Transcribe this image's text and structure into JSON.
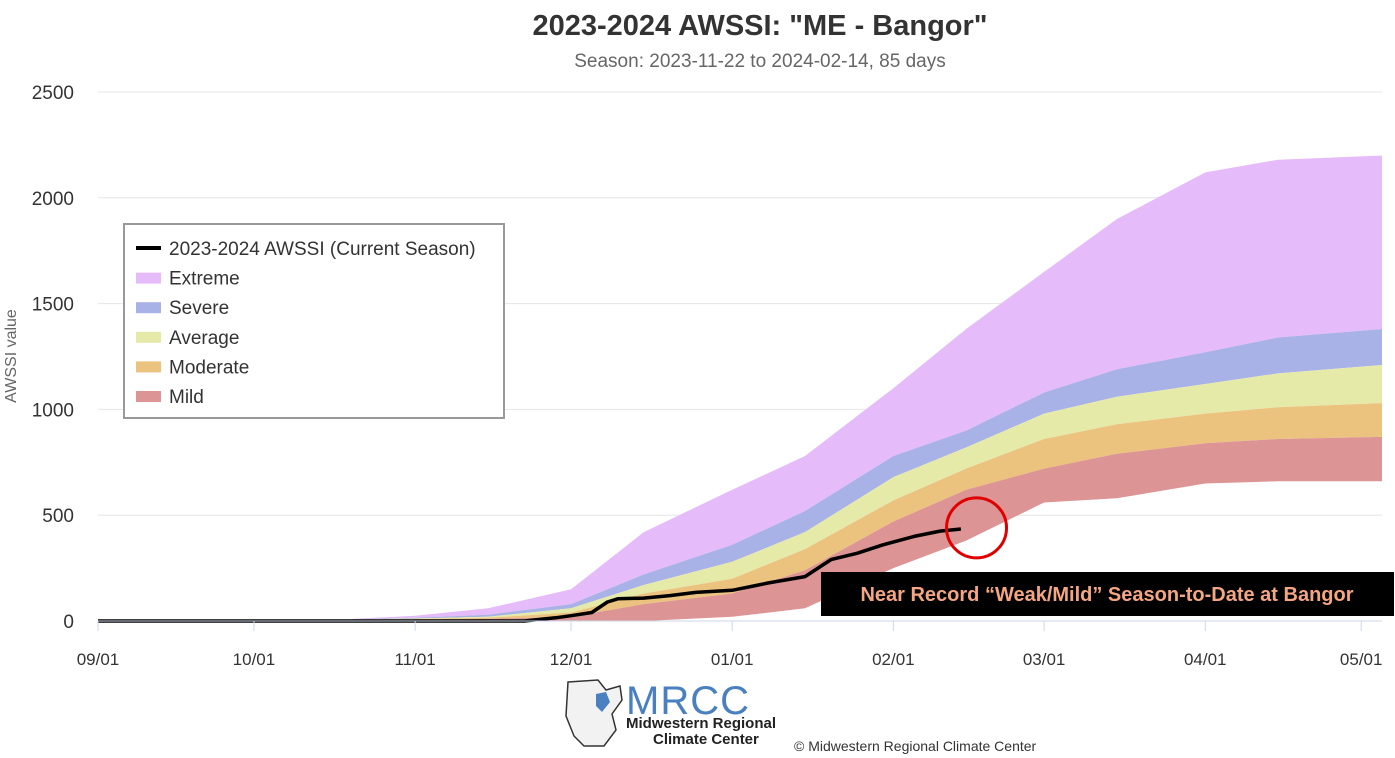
{
  "chart_data": {
    "type": "area",
    "title": "2023-2024 AWSSI: \"ME - Bangor\"",
    "subtitle": "Season: 2023-11-22 to 2024-02-14, 85 days",
    "ylabel": "AWSSI value",
    "xlabel": "",
    "ylim": [
      0,
      2500
    ],
    "yticks": [
      0,
      500,
      1000,
      1500,
      2000,
      2500
    ],
    "xlim": [
      "2023-09-01",
      "2024-05-05"
    ],
    "xticks": [
      {
        "date": "2023-09-01",
        "label": "09/01"
      },
      {
        "date": "2023-10-01",
        "label": "10/01"
      },
      {
        "date": "2023-11-01",
        "label": "11/01"
      },
      {
        "date": "2023-12-01",
        "label": "12/01"
      },
      {
        "date": "2024-01-01",
        "label": "01/01"
      },
      {
        "date": "2024-02-01",
        "label": "02/01"
      },
      {
        "date": "2024-03-01",
        "label": "03/01"
      },
      {
        "date": "2024-04-01",
        "label": "04/01"
      },
      {
        "date": "2024-05-01",
        "label": "05/01"
      }
    ],
    "grid": true,
    "legend_position": "top-left",
    "bands": {
      "dates": [
        "2023-10-20",
        "2023-11-01",
        "2023-11-15",
        "2023-12-01",
        "2023-12-15",
        "2024-01-01",
        "2024-01-15",
        "2024-02-01",
        "2024-02-15",
        "2024-03-01",
        "2024-03-15",
        "2024-04-01",
        "2024-04-15",
        "2024-05-05"
      ],
      "mild_low": [
        0,
        0,
        0,
        0,
        0,
        20,
        60,
        250,
        380,
        560,
        580,
        650,
        660,
        660
      ],
      "mild_high": [
        3,
        6,
        10,
        20,
        80,
        130,
        240,
        470,
        620,
        720,
        790,
        840,
        860,
        870
      ],
      "moderate_high": [
        5,
        8,
        15,
        40,
        130,
        200,
        340,
        570,
        720,
        860,
        930,
        980,
        1010,
        1030
      ],
      "average_high": [
        7,
        12,
        20,
        60,
        170,
        280,
        420,
        680,
        820,
        980,
        1060,
        1120,
        1170,
        1210
      ],
      "severe_high": [
        8,
        15,
        30,
        80,
        220,
        360,
        520,
        780,
        900,
        1080,
        1190,
        1270,
        1340,
        1380
      ],
      "extreme_high": [
        10,
        25,
        60,
        150,
        420,
        620,
        780,
        1100,
        1380,
        1650,
        1900,
        2120,
        2180,
        2200
      ]
    },
    "series": [
      {
        "name": "2023-2024 AWSSI (Current Season)",
        "color": "#000000",
        "x": [
          "2023-09-01",
          "2023-11-22",
          "2023-11-28",
          "2023-12-01",
          "2023-12-05",
          "2023-12-08",
          "2023-12-10",
          "2023-12-15",
          "2023-12-20",
          "2023-12-25",
          "2024-01-01",
          "2024-01-08",
          "2024-01-15",
          "2024-01-20",
          "2024-01-25",
          "2024-01-30",
          "2024-02-05",
          "2024-02-10",
          "2024-02-14"
        ],
        "values": [
          0,
          0,
          15,
          25,
          40,
          90,
          105,
          108,
          120,
          135,
          145,
          180,
          210,
          290,
          320,
          360,
          400,
          425,
          435
        ]
      }
    ],
    "legend": [
      {
        "label": "2023-2024 AWSSI (Current Season)",
        "color": "#000000",
        "kind": "line"
      },
      {
        "label": "Extreme",
        "color": "#e6bbfa",
        "kind": "area"
      },
      {
        "label": "Severe",
        "color": "#a9b2e6",
        "kind": "area"
      },
      {
        "label": "Average",
        "color": "#e6eaa9",
        "kind": "area"
      },
      {
        "label": "Moderate",
        "color": "#ecc27f",
        "kind": "area"
      },
      {
        "label": "Mild",
        "color": "#dc9494",
        "kind": "area"
      }
    ],
    "annotation": {
      "text": "Near Record “Weak/Mild” Season-to-Date at Bangor",
      "circle_date": "2024-02-17",
      "circle_value": 440,
      "circle_color": "#e00000"
    }
  },
  "logo": {
    "big": "MRCC",
    "line1": "Midwestern Regional",
    "line2": "Climate Center"
  },
  "credit": "© Midwestern Regional Climate Center"
}
